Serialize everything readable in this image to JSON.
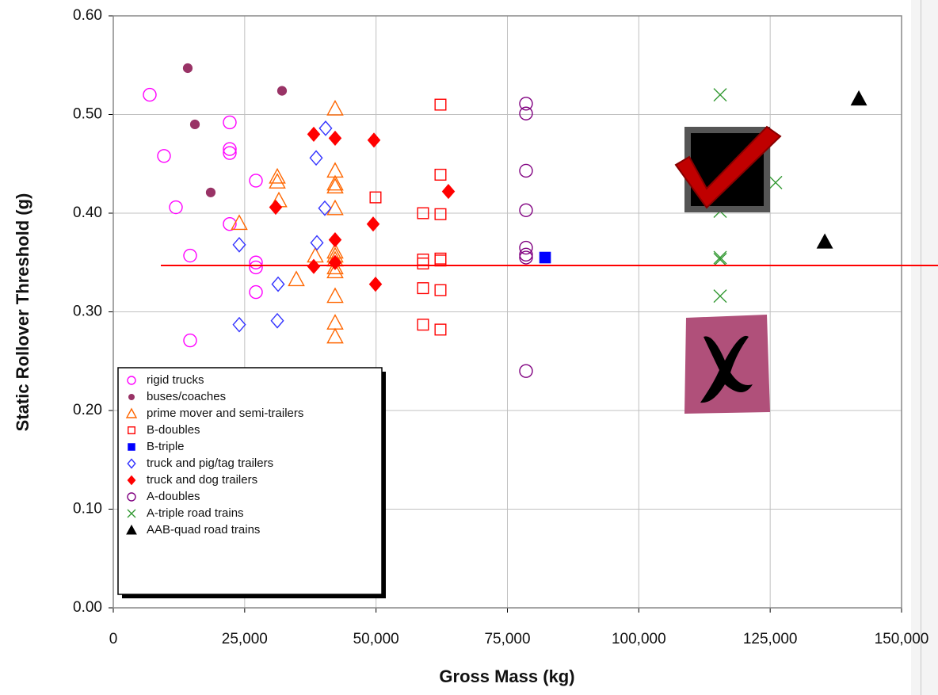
{
  "chart_data": {
    "type": "scatter",
    "x_label": "Gross Mass (kg)",
    "y_label": "Static Rollover Threshold (g)",
    "xlim": [
      0,
      150000
    ],
    "ylim": [
      0,
      0.6
    ],
    "xticks": [
      0,
      {
        "value": 25000,
        "label": "25,000"
      },
      {
        "value": 50000,
        "label": "50,000"
      },
      {
        "value": 75000,
        "label": "75,000"
      },
      {
        "value": 100000,
        "label": "100,000"
      },
      {
        "value": 125000,
        "label": "125,000"
      },
      {
        "value": 150000,
        "label": "150,000"
      }
    ],
    "yticks": [
      {
        "value": 0,
        "label": "0.00"
      },
      {
        "value": 0.1,
        "label": "0.10"
      },
      {
        "value": 0.2,
        "label": "0.20"
      },
      {
        "value": 0.3,
        "label": "0.30"
      },
      {
        "value": 0.4,
        "label": "0.40"
      },
      {
        "value": 0.5,
        "label": "0.50"
      },
      {
        "value": 0.6,
        "label": "0.60"
      }
    ],
    "grid": true,
    "reference_line": {
      "value": 0.347,
      "x_start": 9050,
      "color": "#ff0000"
    },
    "series": [
      {
        "name": "rigid trucks",
        "color": "#ff00ff",
        "marker": "circle-open",
        "x": [
          6935,
          9650,
          11910,
          14620,
          14620,
          22160,
          22160,
          22160,
          22160,
          27140,
          27140,
          27140,
          27140
        ],
        "y": [
          0.52,
          0.458,
          0.406,
          0.357,
          0.271,
          0.492,
          0.465,
          0.461,
          0.389,
          0.433,
          0.35,
          0.345,
          0.32
        ]
      },
      {
        "name": "buses/coaches",
        "color": "#993366",
        "marker": "circle-filled",
        "x": [
          14170,
          15530,
          18540,
          32110
        ],
        "y": [
          0.547,
          0.49,
          0.421,
          0.524
        ]
      },
      {
        "name": "prime mover and semi-trailers",
        "color": "#ff6600",
        "marker": "triangle-open",
        "x": [
          23970,
          31210,
          31210,
          31510,
          34830,
          38440,
          42210,
          42210,
          42210,
          42210,
          42210,
          42210,
          42210,
          42210,
          42210,
          42210,
          42210,
          42210,
          42210
        ],
        "y": [
          0.39,
          0.437,
          0.432,
          0.413,
          0.333,
          0.357,
          0.506,
          0.443,
          0.43,
          0.427,
          0.405,
          0.361,
          0.357,
          0.353,
          0.345,
          0.341,
          0.316,
          0.289,
          0.275
        ]
      },
      {
        "name": "B-doubles",
        "color": "#ff0000",
        "marker": "square-open",
        "x": [
          62260,
          49900,
          62260,
          58940,
          62260,
          58940,
          58940,
          62260,
          62260,
          58940,
          62260,
          58940,
          62260
        ],
        "y": [
          0.51,
          0.416,
          0.439,
          0.4,
          0.399,
          0.353,
          0.349,
          0.354,
          0.352,
          0.324,
          0.322,
          0.287,
          0.282
        ]
      },
      {
        "name": "B-triple",
        "color": "#0000ff",
        "marker": "square-filled",
        "x": [
          82170
        ],
        "y": [
          0.355
        ]
      },
      {
        "name": "truck and pig/tag trailers",
        "color": "#3333ff",
        "marker": "diamond-open",
        "x": [
          40400,
          38600,
          40250,
          23970,
          38750,
          31360,
          23970,
          31210
        ],
        "y": [
          0.486,
          0.456,
          0.405,
          0.368,
          0.37,
          0.328,
          0.287,
          0.291
        ]
      },
      {
        "name": "truck and dog trailers",
        "color": "#ff0000",
        "marker": "diamond-filled",
        "x": [
          38140,
          42210,
          49600,
          63770,
          30900,
          42210,
          49450,
          38140,
          42210,
          49900
        ],
        "y": [
          0.48,
          0.476,
          0.474,
          0.422,
          0.406,
          0.373,
          0.389,
          0.346,
          0.35,
          0.328
        ]
      },
      {
        "name": "A-doubles",
        "color": "#800080",
        "marker": "circle-open",
        "x": [
          78540,
          78540,
          78540,
          78540,
          78540,
          78540,
          78540,
          78540
        ],
        "y": [
          0.511,
          0.501,
          0.443,
          0.403,
          0.365,
          0.358,
          0.355,
          0.24
        ]
      },
      {
        "name": "A-triple road trains",
        "color": "#339933",
        "marker": "x",
        "x": [
          115480,
          126030,
          115480,
          115480,
          115480,
          115480
        ],
        "y": [
          0.52,
          0.431,
          0.402,
          0.355,
          0.353,
          0.316
        ]
      },
      {
        "name": "AAB-quad road trains",
        "color": "#000000",
        "marker": "triangle-filled",
        "x": [
          141870,
          135390
        ],
        "y": [
          0.516,
          0.371
        ]
      }
    ]
  }
}
